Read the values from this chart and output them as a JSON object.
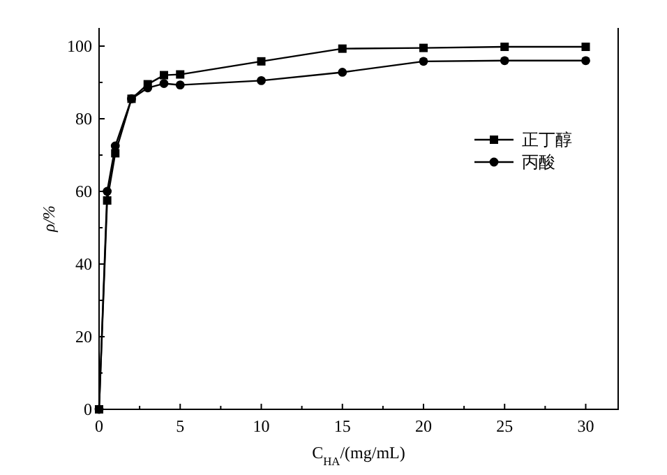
{
  "chart_data": {
    "type": "line",
    "xlabel": "C$_{HA}$/(mg/mL)",
    "ylabel": "ρ/%",
    "x": [
      0,
      0.5,
      1,
      2,
      3,
      4,
      5,
      10,
      15,
      20,
      25,
      30
    ],
    "xlim": [
      0,
      32
    ],
    "xticks": [
      0,
      5,
      10,
      15,
      20,
      25,
      30
    ],
    "ylim": [
      0,
      105
    ],
    "yticks": [
      0,
      20,
      40,
      60,
      80,
      100
    ],
    "legend": "right",
    "grid": false,
    "series": [
      {
        "name": "正丁醇",
        "color": "#000000",
        "marker": "square",
        "values": [
          0,
          57.5,
          70.5,
          85.5,
          89.5,
          92,
          92.2,
          95.8,
          99.3,
          99.5,
          99.8,
          99.8
        ]
      },
      {
        "name": "丙酸",
        "color": "#000000",
        "marker": "circle",
        "values": [
          0,
          60,
          72.5,
          85.5,
          88.5,
          89.7,
          89.3,
          90.5,
          92.8,
          95.8,
          96,
          96
        ]
      }
    ]
  }
}
